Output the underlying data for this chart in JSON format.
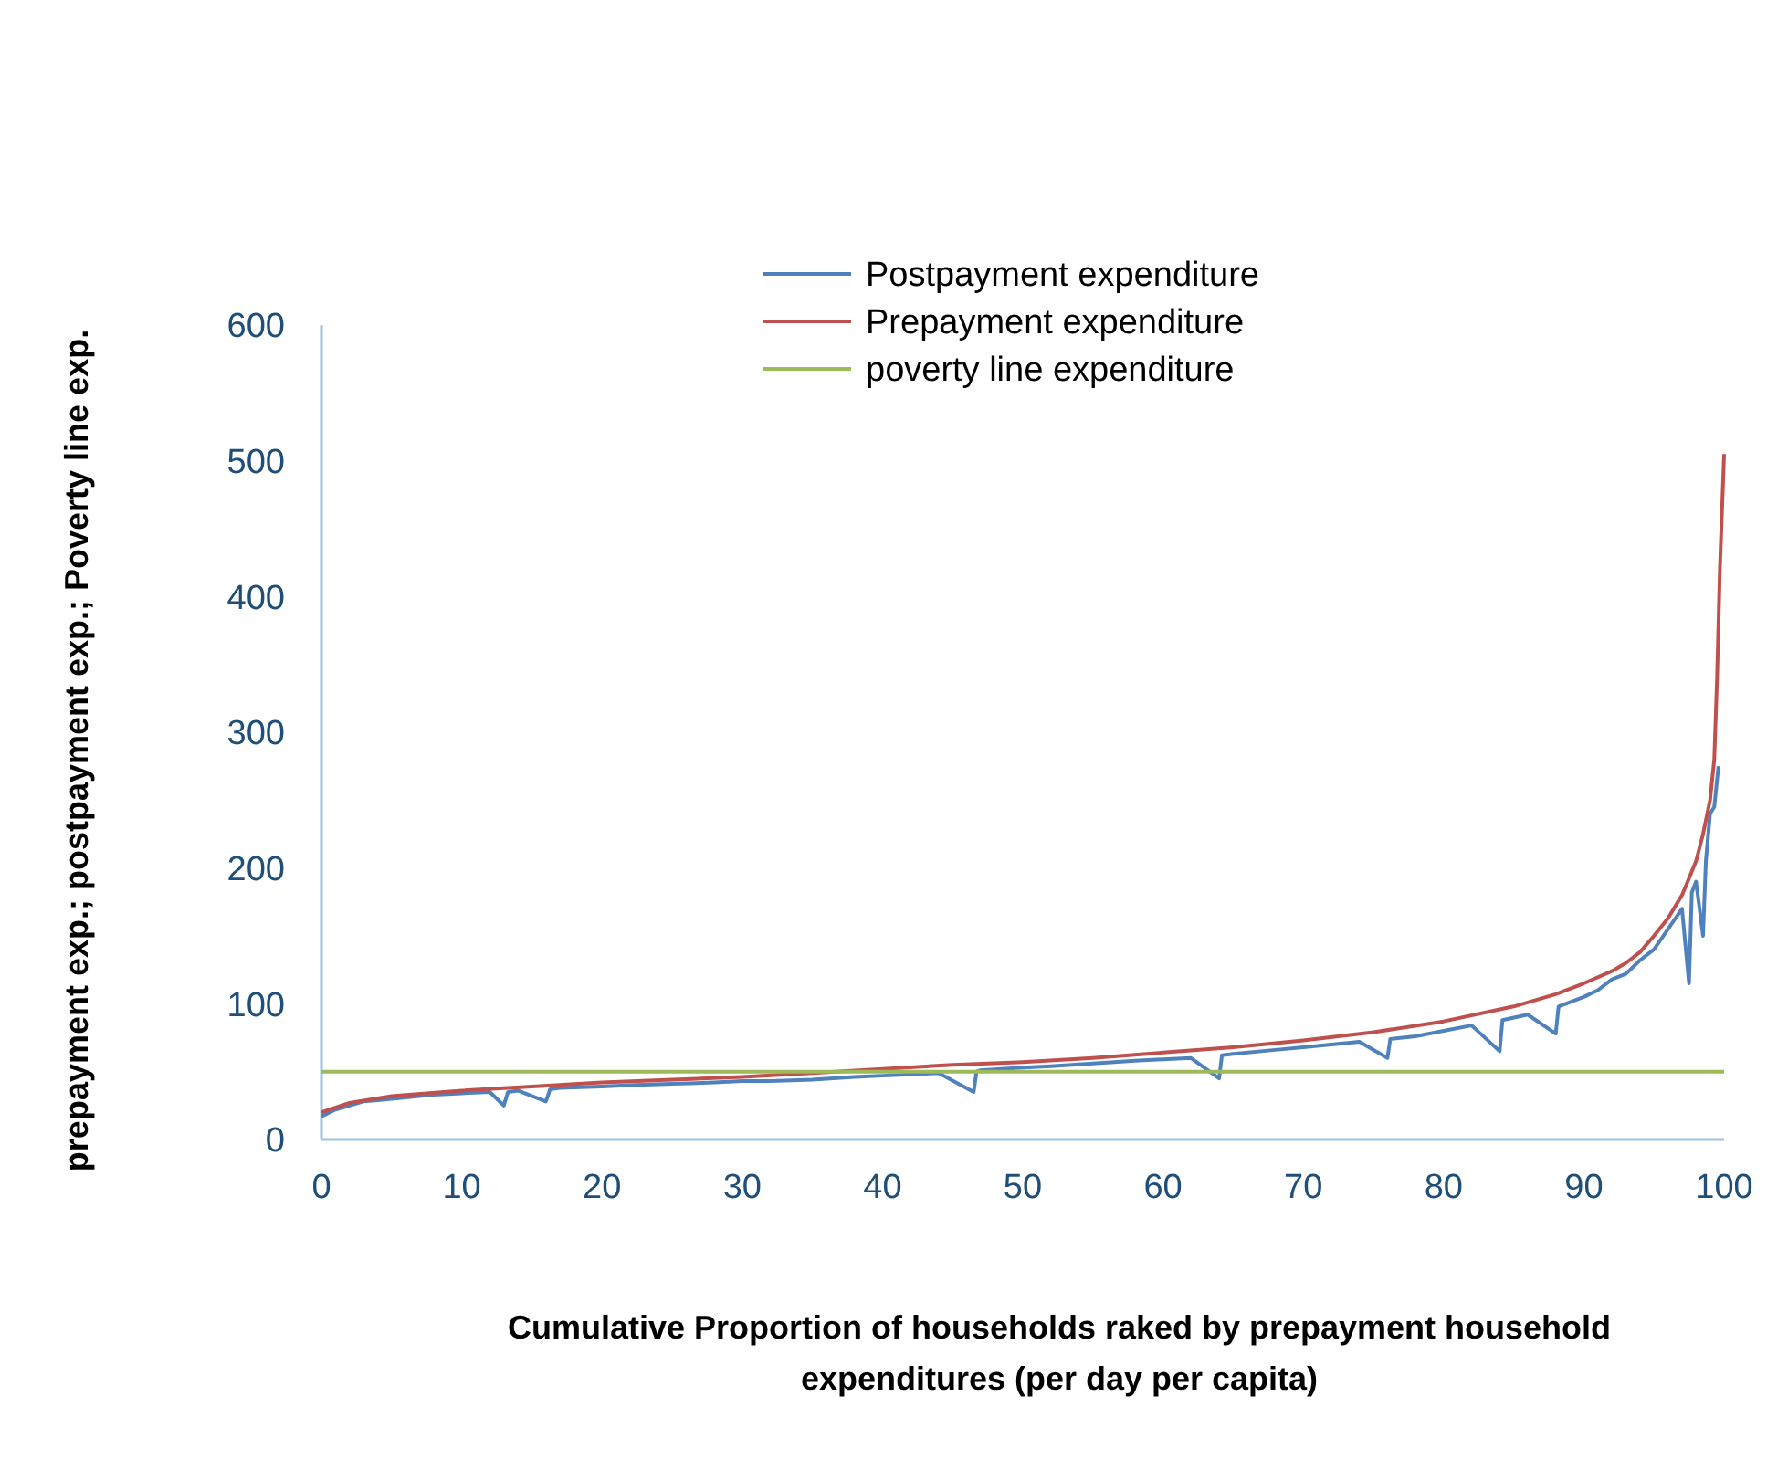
{
  "chart_data": {
    "type": "line",
    "xlabel": "Cumulative Proportion of households raked by prepayment household expenditures (per day per capita)",
    "ylabel": "prepayment exp.; postpayment exp.; Poverty line exp.",
    "xlim": [
      0,
      100
    ],
    "ylim": [
      0,
      600
    ],
    "xticks": [
      0,
      10,
      20,
      30,
      40,
      50,
      60,
      70,
      80,
      90,
      100
    ],
    "yticks": [
      0,
      100,
      200,
      300,
      400,
      500,
      600
    ],
    "grid": false,
    "legend": "top",
    "marker": "none",
    "line_style": "solid",
    "series": [
      {
        "name": "Postpayment expenditure",
        "color": "#4f81bd",
        "x": [
          0,
          1,
          2,
          3,
          4,
          5,
          6,
          8,
          10,
          12,
          13,
          13.3,
          14,
          16,
          16.3,
          17,
          20,
          22,
          25,
          28,
          30,
          32,
          35,
          38,
          40,
          42,
          44,
          46.5,
          46.7,
          47,
          50,
          52,
          55,
          58,
          60,
          62,
          64,
          64.2,
          65,
          68,
          70,
          72,
          74,
          76,
          76.2,
          78,
          80,
          82,
          84,
          84.2,
          86,
          88,
          88.2,
          90,
          91,
          92,
          93,
          94,
          95,
          96,
          97,
          97.5,
          97.7,
          98,
          98.5,
          98.7,
          99,
          99.3,
          99.6
        ],
        "values": [
          17,
          22,
          25,
          28,
          29,
          30,
          31,
          33,
          34,
          35,
          25,
          35,
          36,
          28,
          37,
          38,
          39,
          40,
          41,
          42,
          43,
          43,
          44,
          46,
          47,
          48,
          49,
          35,
          50,
          51,
          53,
          54,
          56,
          58,
          59,
          60,
          45,
          62,
          63,
          66,
          68,
          70,
          72,
          60,
          74,
          76,
          80,
          84,
          65,
          88,
          92,
          78,
          98,
          105,
          110,
          118,
          122,
          132,
          140,
          155,
          170,
          115,
          182,
          190,
          150,
          205,
          240,
          245,
          275
        ]
      },
      {
        "name": "Prepayment expenditure",
        "color": "#c0504d",
        "x": [
          0,
          2,
          5,
          10,
          15,
          20,
          25,
          30,
          35,
          40,
          45,
          50,
          55,
          60,
          65,
          70,
          75,
          80,
          85,
          88,
          90,
          92,
          93,
          94,
          95,
          96,
          97,
          98,
          98.5,
          99,
          99.3,
          99.5,
          99.7,
          100
        ],
        "values": [
          20,
          27,
          32,
          36,
          39,
          42,
          44,
          46,
          49,
          52,
          55,
          57,
          60,
          64,
          68,
          73,
          79,
          87,
          98,
          107,
          115,
          124,
          130,
          138,
          150,
          163,
          180,
          205,
          225,
          250,
          280,
          340,
          420,
          505
        ]
      },
      {
        "name": "poverty line expenditure",
        "color": "#9bbb59",
        "x": [
          0,
          100
        ],
        "values": [
          50,
          50
        ]
      }
    ]
  }
}
